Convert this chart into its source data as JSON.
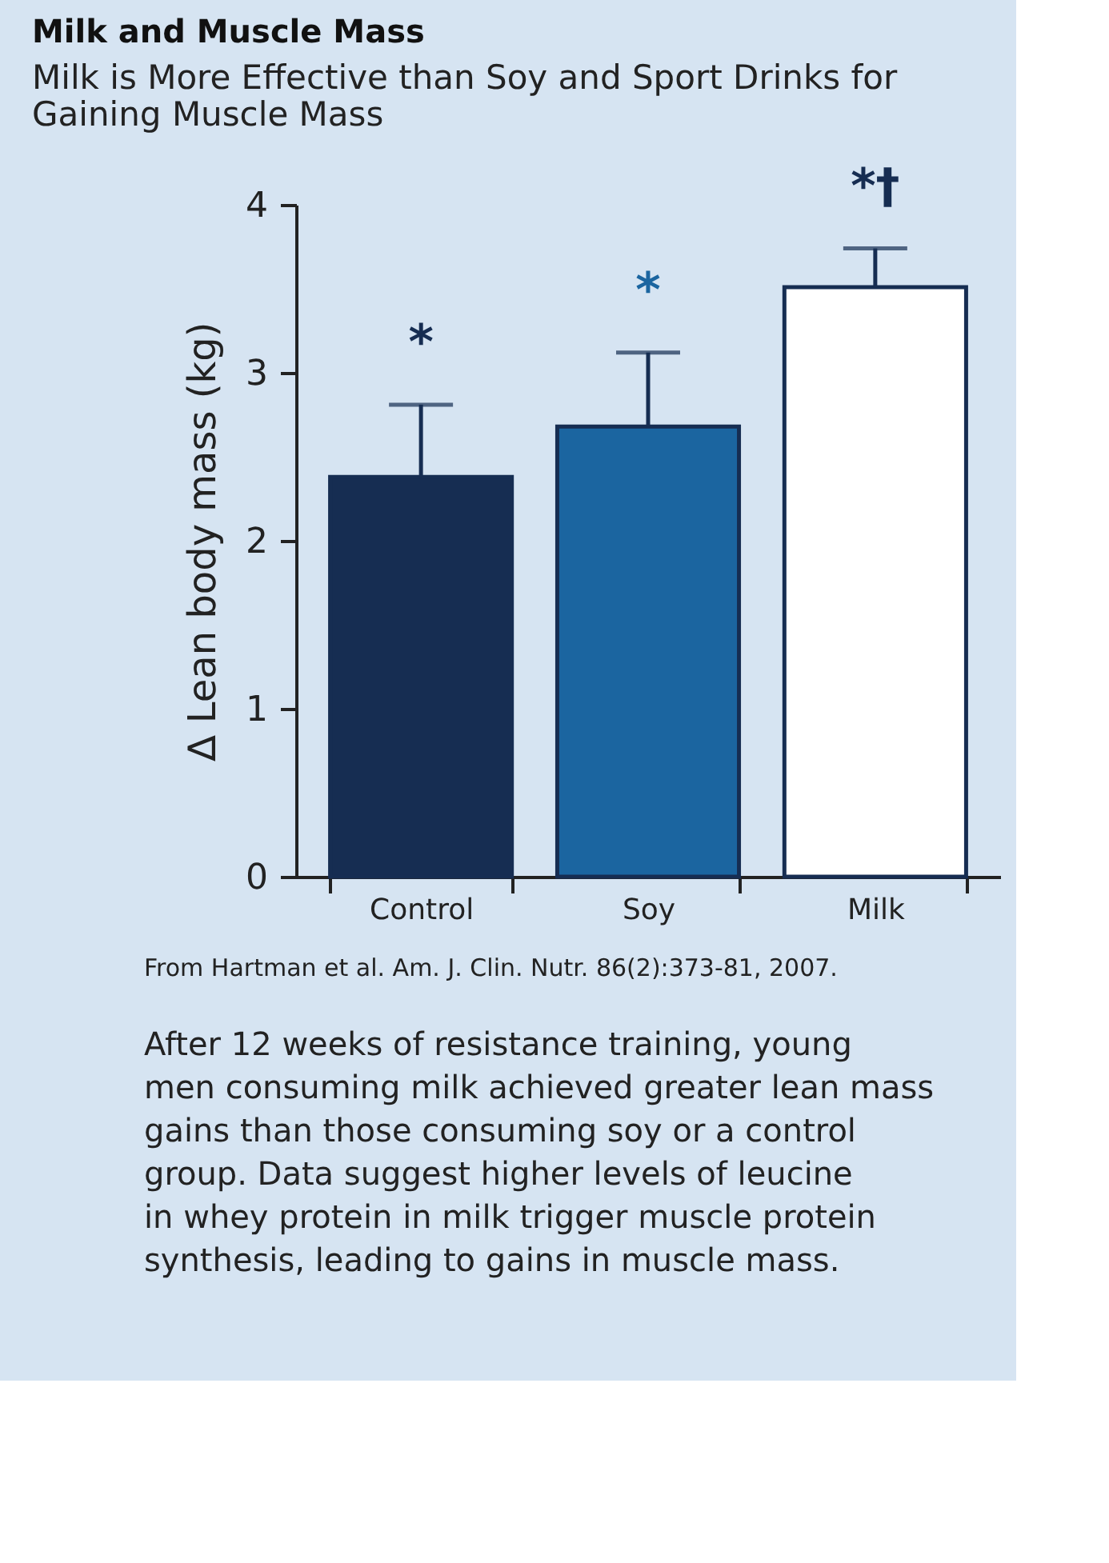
{
  "chart_data": {
    "type": "bar",
    "title": "Milk and Muscle Mass",
    "subtitle": "Milk is More Effective than Soy and Sport Drinks for Gaining Muscle Mass",
    "ylabel": "∆ Lean body mass (kg)",
    "categories": [
      "Control",
      "Soy",
      "Milk"
    ],
    "values": [
      2.38,
      2.68,
      3.51
    ],
    "colors": [
      "#162d52",
      "#1b65a0",
      "#ffffff"
    ],
    "errors": [
      [
        2.38,
        2.81
      ],
      [
        2.68,
        3.12
      ],
      [
        3.51,
        3.74
      ]
    ],
    "ylim": [
      0,
      4
    ],
    "yticks": [
      0,
      1,
      2,
      3,
      4
    ],
    "grid": false,
    "legend": false,
    "annotations": [
      "*",
      "*",
      "*†",
      "From Hartman et al. Am. J. Clin. Nutr. 86(2):373-81, 2007.",
      "After 12 weeks of resistance training, young men consuming milk achieved greater lean mass gains than those consuming soy or a control group. Data suggest higher levels of leucine in whey protein in milk trigger muscle protein synthesis, leading to gains in muscle mass."
    ]
  }
}
